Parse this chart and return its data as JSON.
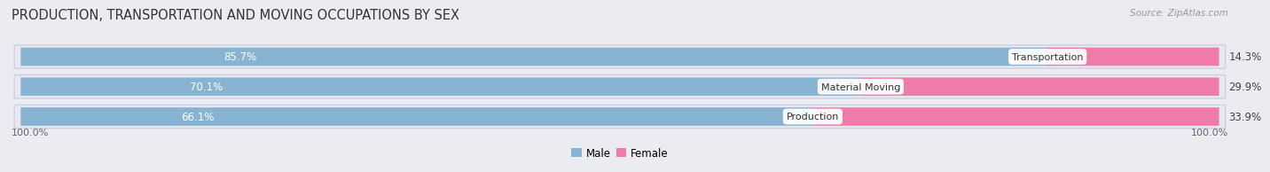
{
  "title": "PRODUCTION, TRANSPORTATION AND MOVING OCCUPATIONS BY SEX",
  "source": "Source: ZipAtlas.com",
  "categories": [
    "Transportation",
    "Material Moving",
    "Production"
  ],
  "male_values": [
    85.7,
    70.1,
    66.1
  ],
  "female_values": [
    14.3,
    29.9,
    33.9
  ],
  "male_color": "#88b4d4",
  "female_color": "#f07aaa",
  "male_color_light": "#aacce8",
  "female_color_light": "#f8b8d0",
  "label_color_male": "#ffffff",
  "label_color_female": "#444444",
  "category_bg": "#ffffff",
  "category_text_color": "#333333",
  "bg_color": "#ebebf2",
  "bar_bg_color": "#dedee8",
  "bar_row_bg": "#e8e8f0",
  "axis_label_left": "100.0%",
  "axis_label_right": "100.0%",
  "legend_male": "Male",
  "legend_female": "Female",
  "title_fontsize": 10.5,
  "source_fontsize": 7.5,
  "bar_label_fontsize": 8.5,
  "category_fontsize": 8.0,
  "axis_fontsize": 8.0,
  "legend_fontsize": 8.5
}
